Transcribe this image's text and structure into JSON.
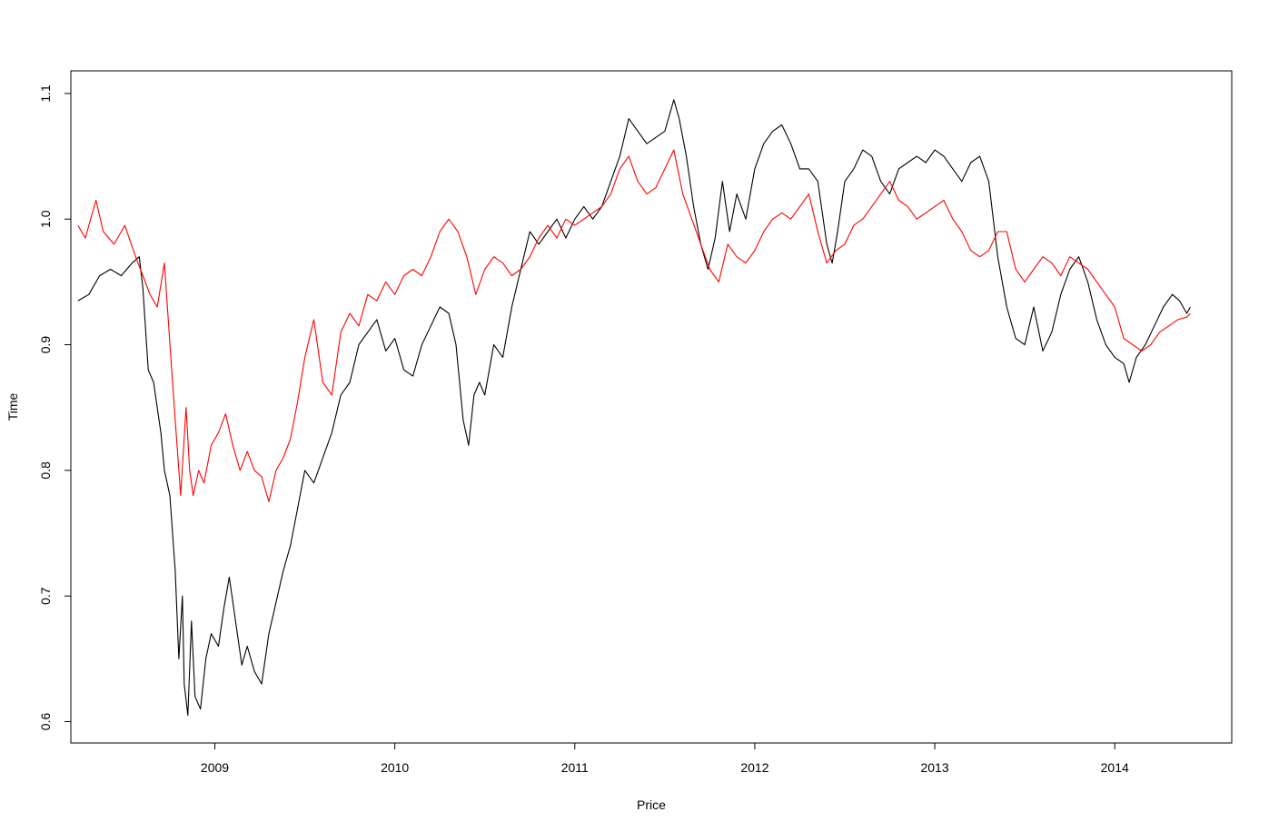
{
  "chart_data": {
    "type": "line",
    "title": "",
    "xlabel": "Price",
    "ylabel": "Time",
    "xlim": [
      2008.2,
      2014.65
    ],
    "ylim": [
      0.583,
      1.118
    ],
    "x_ticks": [
      2009,
      2010,
      2011,
      2012,
      2013,
      2014
    ],
    "x_tick_labels": [
      "2009",
      "2010",
      "2011",
      "2012",
      "2013",
      "2014"
    ],
    "y_ticks": [
      0.6,
      0.7,
      0.8,
      0.9,
      1.0,
      1.1
    ],
    "y_tick_labels": [
      "0.6",
      "0.7",
      "0.8",
      "0.9",
      "1.0",
      "1.1"
    ],
    "grid": false,
    "legend": "none",
    "series": [
      {
        "color": "#000000",
        "x": [
          2008.24,
          2008.3,
          2008.36,
          2008.42,
          2008.48,
          2008.54,
          2008.58,
          2008.6,
          2008.63,
          2008.66,
          2008.7,
          2008.72,
          2008.75,
          2008.78,
          2008.8,
          2008.82,
          2008.83,
          2008.85,
          2008.87,
          2008.89,
          2008.92,
          2008.95,
          2008.98,
          2009.02,
          2009.05,
          2009.08,
          2009.12,
          2009.15,
          2009.18,
          2009.22,
          2009.26,
          2009.3,
          2009.34,
          2009.38,
          2009.42,
          2009.46,
          2009.5,
          2009.55,
          2009.6,
          2009.65,
          2009.7,
          2009.75,
          2009.8,
          2009.85,
          2009.9,
          2009.95,
          2010.0,
          2010.05,
          2010.1,
          2010.15,
          2010.2,
          2010.25,
          2010.3,
          2010.34,
          2010.38,
          2010.41,
          2010.44,
          2010.47,
          2010.5,
          2010.55,
          2010.6,
          2010.65,
          2010.7,
          2010.75,
          2010.8,
          2010.85,
          2010.9,
          2010.95,
          2011.0,
          2011.05,
          2011.1,
          2011.15,
          2011.2,
          2011.25,
          2011.3,
          2011.35,
          2011.4,
          2011.45,
          2011.5,
          2011.55,
          2011.58,
          2011.62,
          2011.66,
          2011.7,
          2011.74,
          2011.78,
          2011.82,
          2011.86,
          2011.9,
          2011.95,
          2012.0,
          2012.05,
          2012.1,
          2012.15,
          2012.2,
          2012.25,
          2012.3,
          2012.35,
          2012.4,
          2012.43,
          2012.46,
          2012.5,
          2012.55,
          2012.6,
          2012.65,
          2012.7,
          2012.75,
          2012.8,
          2012.85,
          2012.9,
          2012.95,
          2013.0,
          2013.05,
          2013.1,
          2013.15,
          2013.2,
          2013.25,
          2013.3,
          2013.35,
          2013.4,
          2013.45,
          2013.5,
          2013.55,
          2013.6,
          2013.65,
          2013.7,
          2013.75,
          2013.8,
          2013.85,
          2013.9,
          2013.95,
          2014.0,
          2014.05,
          2014.08,
          2014.12,
          2014.17,
          2014.22,
          2014.27,
          2014.32,
          2014.36,
          2014.4,
          2014.42
        ],
        "y": [
          0.935,
          0.94,
          0.955,
          0.96,
          0.955,
          0.965,
          0.97,
          0.945,
          0.88,
          0.87,
          0.83,
          0.8,
          0.78,
          0.72,
          0.65,
          0.7,
          0.63,
          0.605,
          0.68,
          0.62,
          0.61,
          0.65,
          0.67,
          0.66,
          0.69,
          0.715,
          0.675,
          0.645,
          0.66,
          0.64,
          0.63,
          0.67,
          0.695,
          0.72,
          0.74,
          0.77,
          0.8,
          0.79,
          0.81,
          0.83,
          0.86,
          0.87,
          0.9,
          0.91,
          0.92,
          0.895,
          0.905,
          0.88,
          0.875,
          0.9,
          0.915,
          0.93,
          0.925,
          0.9,
          0.84,
          0.82,
          0.86,
          0.87,
          0.86,
          0.9,
          0.89,
          0.93,
          0.96,
          0.99,
          0.98,
          0.99,
          1.0,
          0.985,
          1.0,
          1.01,
          1.0,
          1.01,
          1.03,
          1.05,
          1.08,
          1.07,
          1.06,
          1.065,
          1.07,
          1.095,
          1.08,
          1.05,
          1.01,
          0.98,
          0.96,
          0.985,
          1.03,
          0.99,
          1.02,
          1.0,
          1.04,
          1.06,
          1.07,
          1.075,
          1.06,
          1.04,
          1.04,
          1.03,
          0.98,
          0.965,
          0.99,
          1.03,
          1.04,
          1.055,
          1.05,
          1.03,
          1.02,
          1.04,
          1.045,
          1.05,
          1.045,
          1.055,
          1.05,
          1.04,
          1.03,
          1.045,
          1.05,
          1.03,
          0.97,
          0.93,
          0.905,
          0.9,
          0.93,
          0.895,
          0.91,
          0.94,
          0.96,
          0.97,
          0.95,
          0.92,
          0.9,
          0.89,
          0.885,
          0.87,
          0.89,
          0.9,
          0.915,
          0.93,
          0.94,
          0.935,
          0.925,
          0.93
        ]
      },
      {
        "color": "#ff0000",
        "x": [
          2008.24,
          2008.28,
          2008.34,
          2008.38,
          2008.44,
          2008.5,
          2008.56,
          2008.6,
          2008.64,
          2008.68,
          2008.72,
          2008.76,
          2008.78,
          2008.81,
          2008.84,
          2008.86,
          2008.88,
          2008.91,
          2008.94,
          2008.98,
          2009.02,
          2009.06,
          2009.1,
          2009.14,
          2009.18,
          2009.22,
          2009.26,
          2009.3,
          2009.34,
          2009.38,
          2009.42,
          2009.46,
          2009.5,
          2009.55,
          2009.6,
          2009.65,
          2009.7,
          2009.75,
          2009.8,
          2009.85,
          2009.9,
          2009.95,
          2010.0,
          2010.05,
          2010.1,
          2010.15,
          2010.2,
          2010.25,
          2010.3,
          2010.35,
          2010.4,
          2010.45,
          2010.5,
          2010.55,
          2010.6,
          2010.65,
          2010.7,
          2010.75,
          2010.8,
          2010.85,
          2010.9,
          2010.95,
          2011.0,
          2011.05,
          2011.1,
          2011.15,
          2011.2,
          2011.25,
          2011.3,
          2011.35,
          2011.4,
          2011.45,
          2011.5,
          2011.55,
          2011.6,
          2011.65,
          2011.7,
          2011.75,
          2011.8,
          2011.85,
          2011.9,
          2011.95,
          2012.0,
          2012.05,
          2012.1,
          2012.15,
          2012.2,
          2012.25,
          2012.3,
          2012.35,
          2012.4,
          2012.45,
          2012.5,
          2012.55,
          2012.6,
          2012.65,
          2012.7,
          2012.75,
          2012.8,
          2012.85,
          2012.9,
          2012.95,
          2013.0,
          2013.05,
          2013.1,
          2013.15,
          2013.2,
          2013.25,
          2013.3,
          2013.35,
          2013.4,
          2013.45,
          2013.5,
          2013.55,
          2013.6,
          2013.65,
          2013.7,
          2013.75,
          2013.8,
          2013.85,
          2013.9,
          2013.95,
          2014.0,
          2014.05,
          2014.1,
          2014.15,
          2014.2,
          2014.25,
          2014.3,
          2014.35,
          2014.4,
          2014.42
        ],
        "y": [
          0.995,
          0.985,
          1.015,
          0.99,
          0.98,
          0.995,
          0.97,
          0.955,
          0.94,
          0.93,
          0.965,
          0.88,
          0.84,
          0.78,
          0.85,
          0.8,
          0.78,
          0.8,
          0.79,
          0.82,
          0.83,
          0.845,
          0.82,
          0.8,
          0.815,
          0.8,
          0.795,
          0.775,
          0.8,
          0.81,
          0.825,
          0.855,
          0.89,
          0.92,
          0.87,
          0.86,
          0.91,
          0.925,
          0.915,
          0.94,
          0.935,
          0.95,
          0.94,
          0.955,
          0.96,
          0.955,
          0.97,
          0.99,
          1.0,
          0.99,
          0.97,
          0.94,
          0.96,
          0.97,
          0.965,
          0.955,
          0.96,
          0.97,
          0.985,
          0.995,
          0.985,
          1.0,
          0.995,
          1.0,
          1.005,
          1.01,
          1.02,
          1.04,
          1.05,
          1.03,
          1.02,
          1.025,
          1.04,
          1.055,
          1.02,
          1.0,
          0.98,
          0.96,
          0.95,
          0.98,
          0.97,
          0.965,
          0.975,
          0.99,
          1.0,
          1.005,
          1.0,
          1.01,
          1.02,
          0.99,
          0.965,
          0.975,
          0.98,
          0.995,
          1.0,
          1.01,
          1.02,
          1.03,
          1.015,
          1.01,
          1.0,
          1.005,
          1.01,
          1.015,
          1.0,
          0.99,
          0.975,
          0.97,
          0.975,
          0.99,
          0.99,
          0.96,
          0.95,
          0.96,
          0.97,
          0.965,
          0.955,
          0.97,
          0.965,
          0.96,
          0.95,
          0.94,
          0.93,
          0.905,
          0.9,
          0.895,
          0.9,
          0.91,
          0.915,
          0.92,
          0.922,
          0.925
        ]
      }
    ]
  }
}
